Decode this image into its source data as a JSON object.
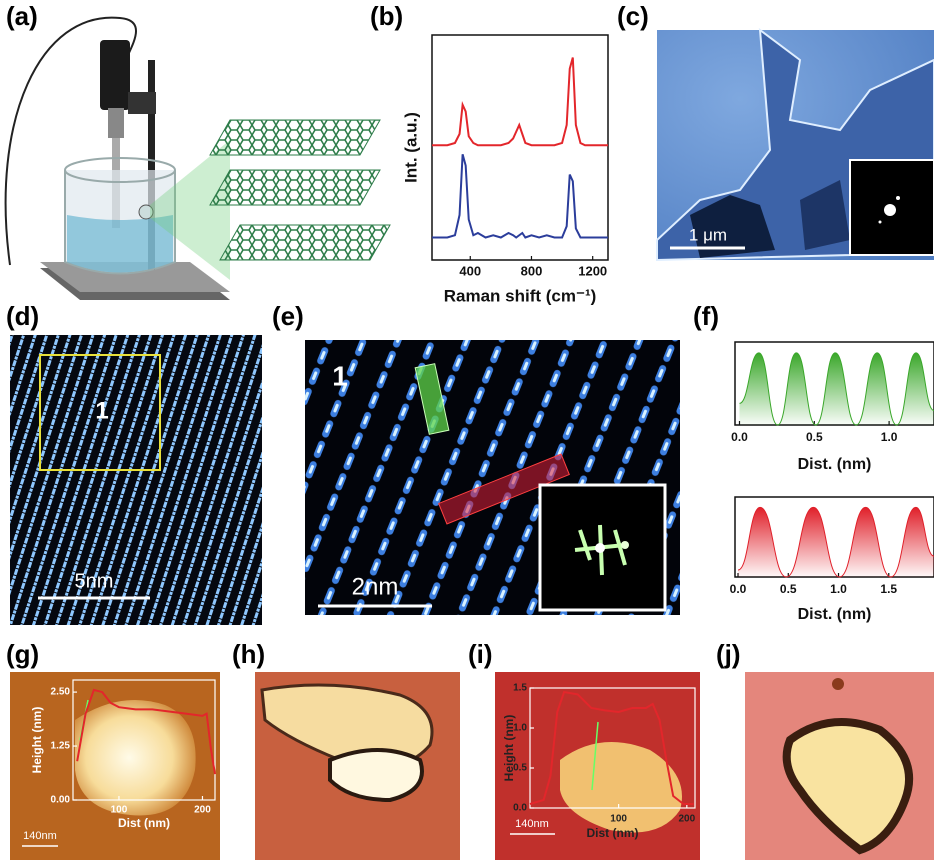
{
  "panel_labels": [
    "(a)",
    "(b)",
    "(c)",
    "(d)",
    "(e)",
    "(f)",
    "(g)",
    "(h)",
    "(i)",
    "(j)"
  ],
  "image_texts": {
    "c_scale": "1 μm",
    "d_region": "1",
    "d_scale": "5nm",
    "e_region": "1",
    "e_scale": "2nm",
    "g_scale": "140nm",
    "i_scale": "140nm"
  },
  "chart_data": [
    {
      "type": "line",
      "xlabel": "Raman shift (cm⁻¹)",
      "ylabel": "Int. (a.u.)",
      "x": [
        150,
        200,
        250,
        300,
        330,
        350,
        370,
        390,
        420,
        450,
        500,
        550,
        600,
        650,
        680,
        700,
        720,
        740,
        760,
        800,
        850,
        900,
        950,
        1000,
        1030,
        1050,
        1070,
        1090,
        1120,
        1150,
        1200,
        1250,
        1300
      ],
      "series": [
        {
          "color": "#e3262b",
          "values": [
            0.51,
            0.51,
            0.51,
            0.52,
            0.56,
            0.69,
            0.66,
            0.55,
            0.52,
            0.51,
            0.51,
            0.51,
            0.51,
            0.52,
            0.54,
            0.57,
            0.6,
            0.56,
            0.52,
            0.51,
            0.51,
            0.51,
            0.51,
            0.52,
            0.6,
            0.85,
            0.9,
            0.6,
            0.52,
            0.51,
            0.51,
            0.51,
            0.51
          ]
        },
        {
          "color": "#2b3d9b",
          "values": [
            0.1,
            0.1,
            0.1,
            0.11,
            0.2,
            0.47,
            0.42,
            0.18,
            0.11,
            0.12,
            0.1,
            0.11,
            0.1,
            0.12,
            0.11,
            0.1,
            0.11,
            0.12,
            0.1,
            0.11,
            0.1,
            0.11,
            0.1,
            0.1,
            0.15,
            0.38,
            0.35,
            0.14,
            0.1,
            0.1,
            0.1,
            0.1,
            0.1
          ]
        }
      ],
      "xlim": [
        150,
        1300
      ],
      "ylim": [
        0,
        1
      ],
      "xticks": [
        400,
        800,
        1200
      ]
    },
    {
      "type": "area",
      "xlabel": "Dist. (nm)",
      "color": "#3aa72a",
      "x": [
        0,
        0.13,
        0.255,
        0.38,
        0.51,
        0.64,
        0.78,
        0.92,
        1.05,
        1.18,
        1.3
      ],
      "values": [
        0.3,
        1,
        0,
        1,
        0,
        1,
        0,
        1,
        0,
        1,
        0.2
      ],
      "xlim": [
        -0.03,
        1.3
      ],
      "ylim": [
        0,
        1.15
      ],
      "xticks": [
        {
          "value": 0,
          "label": "0.0"
        },
        0.5,
        {
          "value": 1,
          "label": "1.0"
        }
      ]
    },
    {
      "type": "area",
      "xlabel": "Dist. (nm)",
      "color": "#e0202a",
      "x": [
        0,
        0.22,
        0.48,
        0.75,
        1.01,
        1.27,
        1.52,
        1.77,
        1.95
      ],
      "values": [
        0.1,
        1,
        0,
        1,
        0,
        1,
        0,
        1,
        0.3
      ],
      "xlim": [
        -0.03,
        1.95
      ],
      "ylim": [
        0,
        1.15
      ],
      "xticks": [
        {
          "value": 0,
          "label": "0.0"
        },
        0.5,
        {
          "value": 1,
          "label": "1.0"
        },
        1.5
      ]
    },
    {
      "type": "line",
      "xlabel": "Dist (nm)",
      "ylabel": "Height (nm)",
      "color": "#e3262b",
      "x": [
        50,
        60,
        70,
        80,
        90,
        100,
        120,
        140,
        160,
        180,
        200,
        205,
        210,
        215
      ],
      "values": [
        0.9,
        2.0,
        2.55,
        2.5,
        2.25,
        2.15,
        2.1,
        2.1,
        2.05,
        2.0,
        1.95,
        2.0,
        1.2,
        0.6
      ],
      "xlim": [
        45,
        215
      ],
      "ylim": [
        0,
        2.78
      ],
      "xticks": [
        100,
        200
      ],
      "yticks": [
        {
          "value": 0,
          "label": "0.00"
        },
        1.25,
        {
          "value": 2.5,
          "label": "2.50"
        }
      ]
    },
    {
      "type": "line",
      "xlabel": "Dist (nm)",
      "ylabel": "Height (nm)",
      "color": "#e3262b",
      "x": [
        -30,
        -10,
        0,
        10,
        20,
        40,
        60,
        80,
        100,
        120,
        140,
        150,
        160,
        170,
        180,
        195,
        210
      ],
      "values": [
        0.05,
        0.1,
        0.4,
        1.2,
        1.45,
        1.42,
        1.25,
        1.22,
        1.2,
        1.25,
        1.25,
        1.3,
        1.1,
        0.6,
        0.15,
        0.05,
        0.05
      ],
      "xlim": [
        -30,
        212
      ],
      "ylim": [
        0,
        1.5
      ],
      "xticks": [
        100,
        200
      ],
      "yticks": [
        {
          "value": 0,
          "label": "0.0"
        },
        0.5,
        {
          "value": 1,
          "label": "1.0"
        },
        1.5
      ]
    }
  ]
}
